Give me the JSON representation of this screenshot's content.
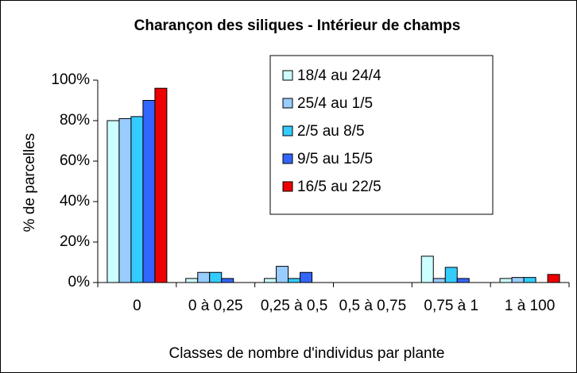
{
  "chart_data": {
    "type": "bar",
    "title": "Charançon des siliques - Intérieur de champs",
    "y_label": "% de parcelles",
    "x_label": "Classes de nombre d'individus par plante",
    "categories": [
      "0",
      "0 à 0,25",
      "0,25 à 0,5",
      "0,5 à 0,75",
      "0,75 à 1",
      "1 à 100"
    ],
    "series": [
      {
        "name": "18/4 au 24/4",
        "color": "#ccffff",
        "values": [
          80,
          2,
          2,
          0,
          13,
          2
        ]
      },
      {
        "name": "25/4 au 1/5",
        "color": "#99ccff",
        "values": [
          81,
          5,
          8,
          0,
          2,
          2.5
        ]
      },
      {
        "name": "2/5 au 8/5",
        "color": "#33ccff",
        "values": [
          82,
          5,
          2,
          0,
          7.5,
          2.5
        ]
      },
      {
        "name": "9/5 au 15/5",
        "color": "#3366ff",
        "values": [
          90,
          2,
          5,
          0,
          2,
          0
        ]
      },
      {
        "name": "16/5 au 22/5",
        "color": "#ee0000",
        "values": [
          96,
          0,
          0,
          0,
          0,
          4
        ]
      }
    ],
    "ylim": [
      0,
      100
    ],
    "yticks": [
      {
        "value": 0,
        "label": "0%"
      },
      {
        "value": 20,
        "label": "20%"
      },
      {
        "value": 40,
        "label": "40%"
      },
      {
        "value": 60,
        "label": "60%"
      },
      {
        "value": 80,
        "label": "80%"
      },
      {
        "value": 100,
        "label": "100%"
      }
    ],
    "legend": "upper right"
  }
}
